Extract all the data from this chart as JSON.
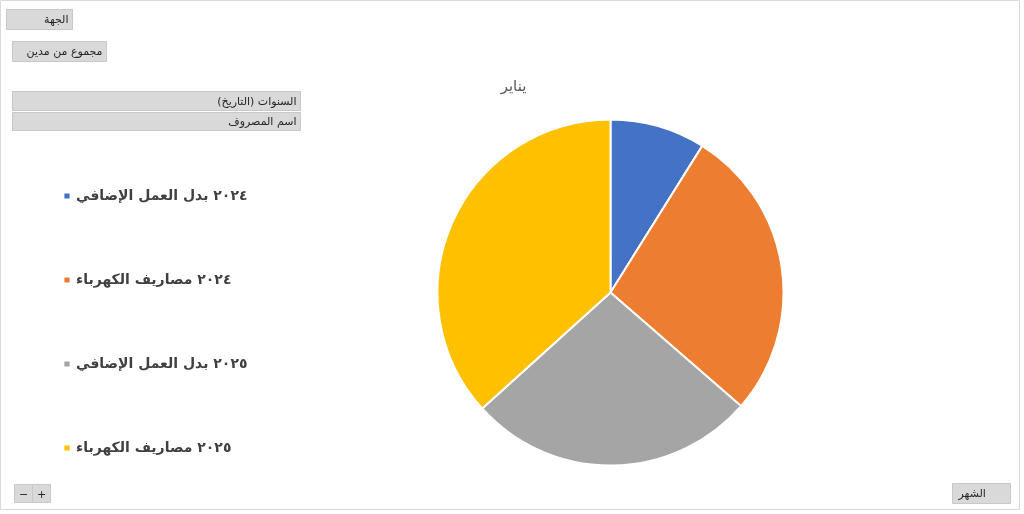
{
  "chart_data": {
    "type": "pie",
    "title": "يناير",
    "categories": [
      "٢٠٢٤ بدل العمل الإضافي",
      "٢٠٢٤ مصاريف الكهرباء",
      "٢٠٢٥ بدل العمل الإضافي",
      "٢٠٢٥ مصاريف الكهرباء"
    ],
    "values": [
      8.9,
      27.5,
      26.9,
      36.7
    ],
    "colors": [
      "#4472c4",
      "#ed7d31",
      "#a5a5a5",
      "#ffc000"
    ],
    "legend": "left",
    "annotations": [
      "الجهة",
      "مجموع من مدين",
      "السنوات (التاريخ)",
      "اسم المصروف",
      "الشهر",
      "−",
      "+"
    ]
  }
}
